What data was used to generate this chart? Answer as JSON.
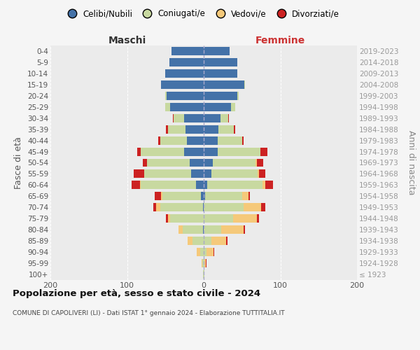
{
  "age_groups": [
    "100+",
    "95-99",
    "90-94",
    "85-89",
    "80-84",
    "75-79",
    "70-74",
    "65-69",
    "60-64",
    "55-59",
    "50-54",
    "45-49",
    "40-44",
    "35-39",
    "30-34",
    "25-29",
    "20-24",
    "15-19",
    "10-14",
    "5-9",
    "0-4"
  ],
  "birth_years": [
    "≤ 1923",
    "1924-1928",
    "1929-1933",
    "1934-1938",
    "1939-1943",
    "1944-1948",
    "1949-1953",
    "1954-1958",
    "1959-1963",
    "1964-1968",
    "1969-1973",
    "1974-1978",
    "1979-1983",
    "1984-1988",
    "1989-1993",
    "1994-1998",
    "1999-2003",
    "2004-2008",
    "2009-2013",
    "2014-2018",
    "2019-2023"
  ],
  "male_celibi": [
    0,
    0,
    0,
    0,
    1,
    0,
    1,
    4,
    10,
    16,
    18,
    26,
    22,
    24,
    26,
    44,
    48,
    56,
    50,
    45,
    42
  ],
  "male_coniugati": [
    1,
    2,
    5,
    15,
    26,
    44,
    56,
    50,
    72,
    62,
    56,
    56,
    35,
    23,
    13,
    6,
    2,
    0,
    0,
    0,
    0
  ],
  "male_vedovi": [
    0,
    1,
    4,
    6,
    6,
    3,
    5,
    2,
    1,
    0,
    0,
    0,
    0,
    0,
    0,
    0,
    0,
    0,
    0,
    0,
    0
  ],
  "male_divorziati": [
    0,
    0,
    0,
    0,
    0,
    2,
    4,
    8,
    11,
    13,
    5,
    5,
    2,
    2,
    1,
    0,
    0,
    0,
    0,
    0,
    0
  ],
  "fem_nubili": [
    0,
    0,
    0,
    0,
    0,
    0,
    0,
    2,
    5,
    10,
    12,
    18,
    18,
    19,
    22,
    36,
    44,
    53,
    44,
    44,
    34
  ],
  "fem_coniugate": [
    1,
    1,
    4,
    10,
    23,
    38,
    52,
    48,
    72,
    60,
    56,
    56,
    32,
    20,
    10,
    5,
    2,
    1,
    0,
    0,
    0
  ],
  "fem_vedove": [
    0,
    2,
    9,
    19,
    29,
    31,
    23,
    8,
    3,
    2,
    1,
    0,
    0,
    0,
    0,
    0,
    0,
    0,
    0,
    0,
    0
  ],
  "fem_divorziate": [
    0,
    1,
    1,
    2,
    2,
    3,
    5,
    2,
    10,
    8,
    9,
    9,
    2,
    2,
    1,
    0,
    0,
    0,
    0,
    0,
    0
  ],
  "colors": {
    "celibi": "#4472a8",
    "coniugati": "#c8d9a0",
    "vedovi": "#f5c97a",
    "divorziati": "#cc2222"
  },
  "xlim": 200,
  "title": "Popolazione per età, sesso e stato civile - 2024",
  "subtitle": "COMUNE DI CAPOLIVERI (LI) - Dati ISTAT 1° gennaio 2024 - Elaborazione TUTTITALIA.IT",
  "ylabel_left": "Fasce di età",
  "ylabel_right": "Anni di nascita",
  "label_maschi": "Maschi",
  "label_femmine": "Femmine",
  "legend_labels": [
    "Celibi/Nubili",
    "Coniugati/e",
    "Vedovi/e",
    "Divorziati/e"
  ],
  "bg_color": "#f5f5f5",
  "plot_bg": "#ebebeb"
}
